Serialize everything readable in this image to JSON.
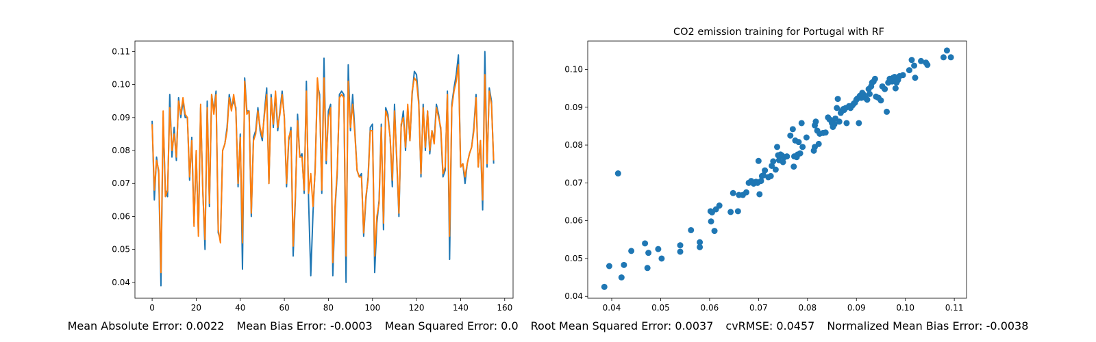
{
  "chart_data": [
    {
      "type": "line",
      "title": "",
      "xlabel": "",
      "ylabel": "",
      "xlim": [
        -7.8,
        163.8
      ],
      "ylim": [
        0.0352,
        0.1132
      ],
      "xticks": [
        0,
        20,
        40,
        60,
        80,
        100,
        120,
        140,
        160
      ],
      "yticks": [
        0.04,
        0.05,
        0.06,
        0.07,
        0.08,
        0.09,
        0.1,
        0.11
      ],
      "ytick_labels": [
        "0.04",
        "0.05",
        "0.06",
        "0.07",
        "0.08",
        "0.09",
        "0.10",
        "0.11"
      ],
      "grid": false,
      "series": [
        {
          "color": "#1f77b4",
          "values": [
            0.089,
            0.065,
            0.078,
            0.073,
            0.039,
            0.09,
            0.068,
            0.066,
            0.097,
            0.078,
            0.087,
            0.077,
            0.096,
            0.09,
            0.095,
            0.09,
            0.09,
            0.071,
            0.084,
            0.058,
            0.079,
            0.055,
            0.093,
            0.068,
            0.05,
            0.095,
            0.063,
            0.097,
            0.092,
            0.098,
            0.055,
            0.053,
            0.08,
            0.082,
            0.087,
            0.097,
            0.093,
            0.095,
            0.093,
            0.069,
            0.085,
            0.044,
            0.102,
            0.092,
            0.092,
            0.06,
            0.084,
            0.086,
            0.093,
            0.086,
            0.083,
            0.092,
            0.099,
            0.07,
            0.097,
            0.087,
            0.097,
            0.086,
            0.092,
            0.098,
            0.09,
            0.069,
            0.083,
            0.087,
            0.048,
            0.065,
            0.091,
            0.078,
            0.079,
            0.067,
            0.101,
            0.065,
            0.042,
            0.061,
            0.075,
            0.1,
            0.097,
            0.067,
            0.108,
            0.076,
            0.092,
            0.094,
            0.042,
            0.062,
            0.073,
            0.097,
            0.098,
            0.097,
            0.04,
            0.106,
            0.086,
            0.097,
            0.086,
            0.074,
            0.072,
            0.073,
            0.054,
            0.065,
            0.072,
            0.087,
            0.088,
            0.043,
            0.058,
            0.065,
            0.088,
            0.056,
            0.093,
            0.091,
            0.084,
            0.069,
            0.094,
            0.077,
            0.06,
            0.087,
            0.092,
            0.08,
            0.093,
            0.083,
            0.097,
            0.104,
            0.103,
            0.095,
            0.072,
            0.094,
            0.08,
            0.092,
            0.079,
            0.086,
            0.083,
            0.094,
            0.091,
            0.086,
            0.072,
            0.074,
            0.098,
            0.047,
            0.094,
            0.099,
            0.103,
            0.109,
            0.075,
            0.076,
            0.07,
            0.076,
            0.079,
            0.081,
            0.087,
            0.097,
            0.075,
            0.083,
            0.062,
            0.11,
            0.075,
            0.099,
            0.095,
            0.076
          ]
        },
        {
          "color": "#ff7f0e",
          "values": [
            0.088,
            0.068,
            0.077,
            0.074,
            0.043,
            0.092,
            0.066,
            0.068,
            0.093,
            0.08,
            0.085,
            0.078,
            0.095,
            0.091,
            0.096,
            0.091,
            0.09,
            0.072,
            0.083,
            0.057,
            0.08,
            0.054,
            0.094,
            0.067,
            0.053,
            0.093,
            0.064,
            0.097,
            0.091,
            0.097,
            0.056,
            0.052,
            0.08,
            0.082,
            0.086,
            0.096,
            0.092,
            0.097,
            0.092,
            0.07,
            0.084,
            0.052,
            0.101,
            0.091,
            0.092,
            0.061,
            0.083,
            0.085,
            0.092,
            0.087,
            0.084,
            0.091,
            0.097,
            0.07,
            0.096,
            0.088,
            0.098,
            0.087,
            0.091,
            0.097,
            0.09,
            0.07,
            0.084,
            0.086,
            0.051,
            0.066,
            0.089,
            0.078,
            0.078,
            0.068,
            0.098,
            0.067,
            0.073,
            0.063,
            0.074,
            0.102,
            0.095,
            0.068,
            0.102,
            0.077,
            0.09,
            0.093,
            0.046,
            0.063,
            0.074,
            0.096,
            0.097,
            0.096,
            0.048,
            0.101,
            0.087,
            0.094,
            0.085,
            0.074,
            0.072,
            0.072,
            0.055,
            0.066,
            0.071,
            0.086,
            0.086,
            0.048,
            0.06,
            0.064,
            0.087,
            0.058,
            0.092,
            0.09,
            0.084,
            0.071,
            0.092,
            0.078,
            0.061,
            0.088,
            0.09,
            0.081,
            0.094,
            0.083,
            0.098,
            0.102,
            0.101,
            0.094,
            0.073,
            0.093,
            0.081,
            0.092,
            0.08,
            0.086,
            0.082,
            0.093,
            0.09,
            0.087,
            0.073,
            0.075,
            0.097,
            0.054,
            0.093,
            0.098,
            0.101,
            0.106,
            0.075,
            0.076,
            0.072,
            0.076,
            0.079,
            0.081,
            0.086,
            0.096,
            0.075,
            0.083,
            0.065,
            0.103,
            0.076,
            0.098,
            0.094,
            0.077
          ]
        }
      ]
    },
    {
      "type": "scatter",
      "title": "CO2 emission training for Portugal with RF",
      "xlabel": "",
      "ylabel": "",
      "xlim": [
        0.0351,
        0.1125
      ],
      "ylim": [
        0.0395,
        0.1075
      ],
      "xticks": [
        0.04,
        0.05,
        0.06,
        0.07,
        0.08,
        0.09,
        0.1,
        0.11
      ],
      "xtick_labels": [
        "0.04",
        "0.05",
        "0.06",
        "0.07",
        "0.08",
        "0.09",
        "0.10",
        "0.11"
      ],
      "yticks": [
        0.04,
        0.05,
        0.06,
        0.07,
        0.08,
        0.09,
        0.1
      ],
      "ytick_labels": [
        "0.04",
        "0.05",
        "0.06",
        "0.07",
        "0.08",
        "0.09",
        "0.10"
      ],
      "grid": false,
      "color": "#1f77b4",
      "points": [
        [
          0.0385,
          0.0425
        ],
        [
          0.0395,
          0.048
        ],
        [
          0.0413,
          0.0725
        ],
        [
          0.042,
          0.045
        ],
        [
          0.0425,
          0.0483
        ],
        [
          0.044,
          0.052
        ],
        [
          0.0468,
          0.054
        ],
        [
          0.0473,
          0.0475
        ],
        [
          0.0475,
          0.0515
        ],
        [
          0.0495,
          0.0525
        ],
        [
          0.0502,
          0.05
        ],
        [
          0.054,
          0.0535
        ],
        [
          0.054,
          0.0518
        ],
        [
          0.0562,
          0.0575
        ],
        [
          0.058,
          0.0543
        ],
        [
          0.058,
          0.053
        ],
        [
          0.0602,
          0.0625
        ],
        [
          0.0603,
          0.0598
        ],
        [
          0.0605,
          0.0622
        ],
        [
          0.061,
          0.0573
        ],
        [
          0.0613,
          0.063
        ],
        [
          0.062,
          0.064
        ],
        [
          0.0643,
          0.0623
        ],
        [
          0.0648,
          0.0673
        ],
        [
          0.0658,
          0.0625
        ],
        [
          0.066,
          0.0668
        ],
        [
          0.0668,
          0.0668
        ],
        [
          0.0675,
          0.0675
        ],
        [
          0.068,
          0.07
        ],
        [
          0.0685,
          0.0705
        ],
        [
          0.069,
          0.0698
        ],
        [
          0.0695,
          0.0703
        ],
        [
          0.0698,
          0.07
        ],
        [
          0.07,
          0.0758
        ],
        [
          0.0702,
          0.067
        ],
        [
          0.0705,
          0.0705
        ],
        [
          0.0707,
          0.0718
        ],
        [
          0.071,
          0.072
        ],
        [
          0.0713,
          0.0733
        ],
        [
          0.072,
          0.0715
        ],
        [
          0.0725,
          0.0718
        ],
        [
          0.0727,
          0.0745
        ],
        [
          0.073,
          0.0757
        ],
        [
          0.0735,
          0.0735
        ],
        [
          0.0738,
          0.0795
        ],
        [
          0.074,
          0.0773
        ],
        [
          0.0742,
          0.076
        ],
        [
          0.0745,
          0.0775
        ],
        [
          0.0748,
          0.0772
        ],
        [
          0.075,
          0.0755
        ],
        [
          0.0753,
          0.0768
        ],
        [
          0.0758,
          0.077
        ],
        [
          0.0765,
          0.0825
        ],
        [
          0.077,
          0.0842
        ],
        [
          0.0772,
          0.0743
        ],
        [
          0.0773,
          0.077
        ],
        [
          0.0775,
          0.0812
        ],
        [
          0.0778,
          0.0768
        ],
        [
          0.078,
          0.0775
        ],
        [
          0.0782,
          0.0808
        ],
        [
          0.0785,
          0.0778
        ],
        [
          0.0788,
          0.0858
        ],
        [
          0.079,
          0.0795
        ],
        [
          0.0798,
          0.082
        ],
        [
          0.0813,
          0.0785
        ],
        [
          0.0815,
          0.0795
        ],
        [
          0.0815,
          0.0852
        ],
        [
          0.0817,
          0.0862
        ],
        [
          0.082,
          0.0838
        ],
        [
          0.0823,
          0.0803
        ],
        [
          0.0825,
          0.083
        ],
        [
          0.0832,
          0.0832
        ],
        [
          0.0837,
          0.0833
        ],
        [
          0.0842,
          0.0873
        ],
        [
          0.0845,
          0.0868
        ],
        [
          0.0848,
          0.0865
        ],
        [
          0.085,
          0.0858
        ],
        [
          0.0852,
          0.0848
        ],
        [
          0.0855,
          0.0855
        ],
        [
          0.0857,
          0.087
        ],
        [
          0.086,
          0.0898
        ],
        [
          0.0862,
          0.0922
        ],
        [
          0.0865,
          0.0862
        ],
        [
          0.0868,
          0.0885
        ],
        [
          0.087,
          0.089
        ],
        [
          0.0873,
          0.0895
        ],
        [
          0.0875,
          0.0893
        ],
        [
          0.0878,
          0.0898
        ],
        [
          0.088,
          0.0858
        ],
        [
          0.0885,
          0.0903
        ],
        [
          0.0888,
          0.0898
        ],
        [
          0.0892,
          0.0905
        ],
        [
          0.0895,
          0.091
        ],
        [
          0.0897,
          0.0912
        ],
        [
          0.09,
          0.092
        ],
        [
          0.0902,
          0.0923
        ],
        [
          0.0905,
          0.0858
        ],
        [
          0.0907,
          0.093
        ],
        [
          0.091,
          0.0925
        ],
        [
          0.0912,
          0.0938
        ],
        [
          0.0915,
          0.0933
        ],
        [
          0.0918,
          0.0925
        ],
        [
          0.0922,
          0.092
        ],
        [
          0.0925,
          0.0948
        ],
        [
          0.0927,
          0.0935
        ],
        [
          0.093,
          0.0955
        ],
        [
          0.0932,
          0.0965
        ],
        [
          0.0935,
          0.0968
        ],
        [
          0.0938,
          0.0975
        ],
        [
          0.094,
          0.0928
        ],
        [
          0.0945,
          0.0925
        ],
        [
          0.095,
          0.0918
        ],
        [
          0.0953,
          0.0955
        ],
        [
          0.0958,
          0.0948
        ],
        [
          0.0962,
          0.0888
        ],
        [
          0.0965,
          0.0965
        ],
        [
          0.0968,
          0.0975
        ],
        [
          0.097,
          0.0972
        ],
        [
          0.0973,
          0.0968
        ],
        [
          0.0975,
          0.0978
        ],
        [
          0.0978,
          0.098
        ],
        [
          0.098,
          0.095
        ],
        [
          0.0982,
          0.0965
        ],
        [
          0.0985,
          0.0972
        ],
        [
          0.0988,
          0.0982
        ],
        [
          0.0995,
          0.0985
        ],
        [
          0.1008,
          0.0998
        ],
        [
          0.1013,
          0.1025
        ],
        [
          0.1018,
          0.101
        ],
        [
          0.102,
          0.0978
        ],
        [
          0.1032,
          0.1022
        ],
        [
          0.1042,
          0.1018
        ],
        [
          0.1045,
          0.1012
        ],
        [
          0.1078,
          0.1032
        ],
        [
          0.1085,
          0.105
        ],
        [
          0.1093,
          0.1032
        ]
      ]
    }
  ],
  "metrics": {
    "mae": "Mean Absolute Error: 0.0022",
    "mbe": "Mean Bias Error: -0.0003",
    "mse": "Mean Squared Error: 0.0",
    "rmse": "Root Mean Squared Error: 0.0037",
    "cvrmse": "cvRMSE: 0.0457",
    "nmbe": "Normalized Mean Bias Error: -0.0038"
  }
}
